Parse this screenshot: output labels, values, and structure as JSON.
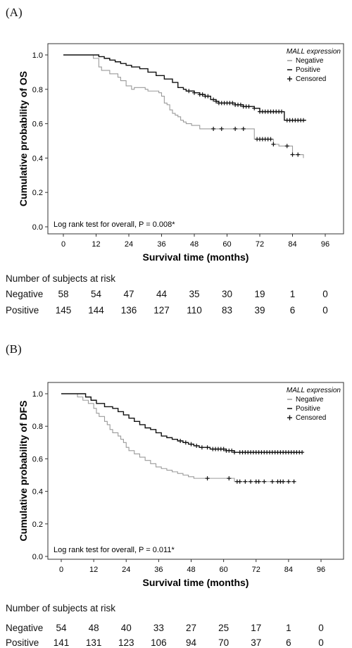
{
  "chart_data": [
    {
      "type": "line",
      "panel_label": "(A)",
      "xlabel": "Survival time (months)",
      "ylabel": "Cumulative probability of OS",
      "xticks": [
        0,
        12,
        24,
        36,
        48,
        60,
        72,
        84,
        96
      ],
      "yticks": [
        "0.0",
        "0.2",
        "0.4",
        "0.6",
        "0.8",
        "1.0"
      ],
      "xlim": [
        -6,
        102
      ],
      "ylim": [
        -0.02,
        1.06
      ],
      "legend": {
        "title": "MALL expression",
        "position": "top-right",
        "items": [
          "Negative",
          "Positive",
          "Censored"
        ]
      },
      "annotation": "Log rank test for overall, P = 0.008*",
      "series": [
        {
          "name": "Negative",
          "color": "#9a9a9a",
          "x": [
            0,
            9,
            11,
            13,
            14,
            17,
            20,
            21,
            23,
            25,
            26,
            30,
            31,
            35,
            36,
            37,
            38,
            39,
            40,
            41,
            42,
            43,
            44,
            45,
            47,
            49,
            50,
            53,
            54,
            70,
            71,
            77,
            79,
            80,
            84,
            88
          ],
          "y": [
            1.0,
            1.0,
            0.98,
            0.93,
            0.91,
            0.89,
            0.87,
            0.85,
            0.82,
            0.8,
            0.81,
            0.8,
            0.79,
            0.78,
            0.76,
            0.72,
            0.71,
            0.68,
            0.66,
            0.65,
            0.64,
            0.62,
            0.61,
            0.6,
            0.59,
            0.59,
            0.57,
            0.57,
            0.57,
            0.51,
            0.51,
            0.48,
            0.47,
            0.47,
            0.42,
            0.4
          ],
          "censored_x": [
            55,
            58,
            63,
            66,
            71,
            72,
            73,
            74,
            75,
            76,
            77,
            82,
            84,
            86
          ]
        },
        {
          "name": "Positive",
          "color": "#111111",
          "x": [
            0,
            11,
            13,
            15,
            17,
            19,
            21,
            23,
            25,
            28,
            31,
            34,
            37,
            40,
            42,
            44,
            45,
            46,
            48,
            50,
            52,
            54,
            56,
            57,
            60,
            63,
            66,
            68,
            70,
            72,
            75,
            78,
            81,
            89
          ],
          "y": [
            1.0,
            1.0,
            0.99,
            0.98,
            0.97,
            0.96,
            0.95,
            0.94,
            0.93,
            0.92,
            0.9,
            0.88,
            0.86,
            0.84,
            0.81,
            0.8,
            0.79,
            0.79,
            0.78,
            0.77,
            0.76,
            0.74,
            0.73,
            0.72,
            0.72,
            0.71,
            0.7,
            0.7,
            0.69,
            0.67,
            0.67,
            0.67,
            0.62,
            0.62
          ],
          "censored_x": [
            46,
            48,
            50,
            51,
            52,
            53,
            55,
            56,
            57,
            58,
            59,
            60,
            61,
            62,
            63,
            64,
            65,
            66,
            67,
            68,
            70,
            72,
            73,
            74,
            75,
            76,
            77,
            78,
            79,
            80,
            82,
            83,
            84,
            85,
            86,
            87,
            88
          ]
        }
      ],
      "risk_table": {
        "title": "Number of subjects at risk",
        "rows": [
          {
            "name": "Negative",
            "values": [
              "58",
              "54",
              "47",
              "44",
              "35",
              "30",
              "19",
              "1",
              "0"
            ]
          },
          {
            "name": "Positive",
            "values": [
              "145",
              "144",
              "136",
              "127",
              "110",
              "83",
              "39",
              "6",
              "0"
            ]
          }
        ]
      }
    },
    {
      "type": "line",
      "panel_label": "(B)",
      "xlabel": "Survival time (months)",
      "ylabel": "Cumulative probability of DFS",
      "xticks": [
        0,
        12,
        24,
        36,
        48,
        60,
        72,
        84,
        96
      ],
      "yticks": [
        "0.0",
        "0.2",
        "0.4",
        "0.6",
        "0.8",
        "1.0"
      ],
      "xlim": [
        -6,
        102
      ],
      "ylim": [
        -0.02,
        1.06
      ],
      "legend": {
        "title": "MALL expression",
        "position": "top-right",
        "items": [
          "Negative",
          "Positive",
          "Censored"
        ]
      },
      "annotation": "Log rank test for overall, P = 0.011*",
      "series": [
        {
          "name": "Negative",
          "color": "#9a9a9a",
          "x": [
            0,
            4,
            6,
            8,
            10,
            12,
            13,
            14,
            16,
            17,
            18,
            19,
            21,
            22,
            23,
            24,
            25,
            27,
            29,
            31,
            33,
            35,
            37,
            39,
            41,
            43,
            45,
            47,
            49,
            52,
            55,
            60,
            62,
            64,
            86
          ],
          "y": [
            1.0,
            1.0,
            0.98,
            0.96,
            0.94,
            0.91,
            0.88,
            0.86,
            0.83,
            0.81,
            0.78,
            0.76,
            0.74,
            0.72,
            0.7,
            0.67,
            0.65,
            0.63,
            0.61,
            0.59,
            0.57,
            0.55,
            0.54,
            0.53,
            0.52,
            0.51,
            0.5,
            0.49,
            0.48,
            0.48,
            0.48,
            0.48,
            0.48,
            0.46,
            0.46
          ],
          "censored_x": [
            54,
            62,
            65,
            66,
            68,
            70,
            72,
            73,
            75,
            78,
            80,
            81,
            82,
            84,
            86
          ]
        },
        {
          "name": "Positive",
          "color": "#111111",
          "x": [
            0,
            6,
            9,
            11,
            13,
            16,
            19,
            21,
            23,
            25,
            27,
            29,
            31,
            33,
            35,
            37,
            39,
            41,
            43,
            45,
            47,
            49,
            51,
            53,
            55,
            57,
            61,
            64,
            89
          ],
          "y": [
            1.0,
            1.0,
            0.98,
            0.96,
            0.94,
            0.92,
            0.91,
            0.89,
            0.87,
            0.85,
            0.83,
            0.81,
            0.79,
            0.78,
            0.76,
            0.74,
            0.73,
            0.72,
            0.71,
            0.7,
            0.69,
            0.68,
            0.67,
            0.67,
            0.66,
            0.66,
            0.65,
            0.64,
            0.64
          ],
          "censored_x": [
            44,
            46,
            48,
            50,
            52,
            54,
            56,
            57,
            58,
            59,
            60,
            61,
            62,
            63,
            64,
            66,
            67,
            68,
            69,
            70,
            71,
            72,
            73,
            74,
            75,
            76,
            77,
            78,
            79,
            80,
            81,
            82,
            83,
            84,
            85,
            86,
            87,
            88,
            89
          ]
        }
      ],
      "risk_table": {
        "title": "Number of subjects at risk",
        "rows": [
          {
            "name": "Negative",
            "values": [
              "54",
              "48",
              "40",
              "33",
              "27",
              "25",
              "17",
              "1",
              "0"
            ]
          },
          {
            "name": "Positive",
            "values": [
              "141",
              "131",
              "123",
              "106",
              "94",
              "70",
              "37",
              "6",
              "0"
            ]
          }
        ]
      }
    }
  ]
}
